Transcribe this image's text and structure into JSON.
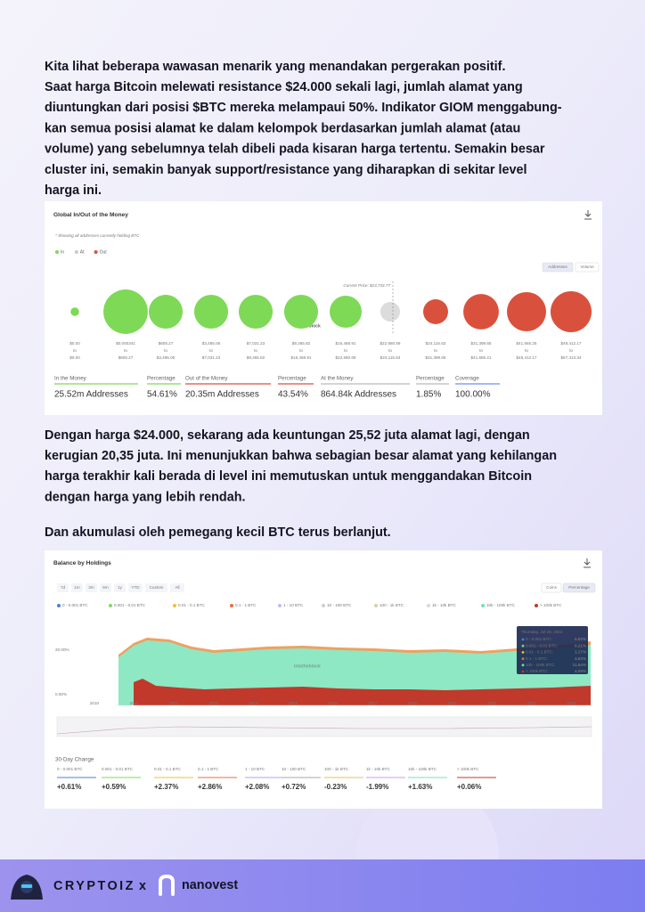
{
  "body": {
    "paragraphs": [
      {
        "lines": [
          "Kita lihat beberapa wawasan menarik yang menandakan pergerakan positif.",
          "Saat harga Bitcoin melewati resistance $24.000 sekali lagi, jumlah alamat yang",
          "diuntungkan dari posisi $BTC mereka melampaui 50%. Indikator GIOM menggabung-",
          "kan semua posisi alamat ke dalam kelompok berdasarkan jumlah alamat (atau",
          "volume) yang sebelumnya telah dibeli pada kisaran harga tertentu. Semakin besar",
          "cluster ini, semakin banyak support/resistance yang diharapkan di sekitar level",
          "harga ini."
        ]
      },
      {
        "lines": [
          "Dengan harga $24.000, sekarang ada keuntungan 25,52 juta alamat lagi, dengan",
          "kerugian 20,35 juta. Ini menunjukkan bahwa sebagian besar alamat yang kehilangan",
          "harga terakhir kali berada di level ini memutuskan untuk menggandakan Bitcoin",
          "dengan harga yang lebih rendah."
        ]
      },
      {
        "lines": [
          "Dan akumulasi oleh pemegang kecil BTC terus berlanjut."
        ]
      }
    ]
  },
  "figure_1": {
    "title": "Global In/Out of the Money",
    "note": "* Showing all addresses currently holding BTC",
    "legend": [
      {
        "label": "In",
        "color": "#7ed957"
      },
      {
        "label": "At",
        "color": "#c9c9c9"
      },
      {
        "label": "Out",
        "color": "#d9513c"
      }
    ],
    "toggles": [
      "Addresses",
      "Volume"
    ],
    "current_price": "Current Price: $23,733.77",
    "watermark": "intotheblock",
    "range_word": "to",
    "bubbles": [
      {
        "from": "$0.00",
        "to": "$0.00",
        "color": "#7ed957",
        "size": 4
      },
      {
        "from": "$0.000341",
        "to": "$605.27",
        "color": "#7ed957",
        "size": 108
      },
      {
        "from": "$605.27",
        "to": "$3,485.06",
        "color": "#7ed957",
        "size": 63
      },
      {
        "from": "$3,485.06",
        "to": "$7,031.23",
        "color": "#7ed957",
        "size": 63
      },
      {
        "from": "$7,031.23",
        "to": "$9,365.82",
        "color": "#7ed957",
        "size": 63
      },
      {
        "from": "$9,365.82",
        "to": "$16,468.91",
        "color": "#7ed957",
        "size": 63
      },
      {
        "from": "$16,468.91",
        "to": "$22,680.69",
        "color": "#7ed957",
        "size": 56
      },
      {
        "from": "$22,680.69",
        "to": "$24,115.63",
        "color": "#dcdcdc",
        "size": 21
      },
      {
        "from": "$24,115.63",
        "to": "$31,399.65",
        "color": "#d9513c",
        "size": 34
      },
      {
        "from": "$31,399.65",
        "to": "$41,665.21",
        "color": "#d9513c",
        "size": 69
      },
      {
        "from": "$41,665.25",
        "to": "$49,412.17",
        "color": "#d9513c",
        "size": 84
      },
      {
        "from": "$49,412.17",
        "to": "$67,413.34",
        "color": "#d9513c",
        "size": 92
      }
    ],
    "stats": [
      {
        "label": "In the Money",
        "value": "25.52m Addresses",
        "color": "#7ed957"
      },
      {
        "label": "Percentage",
        "value": "54.61%",
        "color": "#7ed957"
      },
      {
        "label": "Out of the Money",
        "value": "20.35m Addresses",
        "color": "#d9513c"
      },
      {
        "label": "Percentage",
        "value": "43.54%",
        "color": "#d9513c"
      },
      {
        "label": "At the Money",
        "value": "864.84k Addresses",
        "color": "#bbbbbb"
      },
      {
        "label": "Percentage",
        "value": "1.85%",
        "color": "#bbbbbb"
      },
      {
        "label": "Coverage",
        "value": "100.00%",
        "color": "#6f8ff0"
      }
    ]
  },
  "figure_2": {
    "title": "Balance by Holdings",
    "ranges": [
      "7d",
      "1m",
      "3m",
      "6m",
      "1y",
      "YTD",
      "Custom",
      "All"
    ],
    "toggles": [
      "Coins",
      "Percentage"
    ],
    "legend": [
      {
        "label": "0 - 0.001 BTC",
        "color": "#4a7fe0"
      },
      {
        "label": "0.001 - 0.01 BTC",
        "color": "#7ed957"
      },
      {
        "label": "0.01 - 0.1 BTC",
        "color": "#f2c12e"
      },
      {
        "label": "0.1 - 1 BTC",
        "color": "#ef6b3a"
      },
      {
        "label": "1 - 10 BTC",
        "color": "#c7b8f0"
      },
      {
        "label": "10 - 100 BTC",
        "color": "#cfcfcf"
      },
      {
        "label": "100 - 1k BTC",
        "color": "#d8d0a8"
      },
      {
        "label": "1k - 10k BTC",
        "color": "#d6d6e6"
      },
      {
        "label": "10k - 100k BTC",
        "color": "#6fe3b8"
      },
      {
        "label": "> 100k BTC",
        "color": "#c0392b"
      }
    ],
    "y_labels": [
      "20.00%",
      "0.00%"
    ],
    "years": [
      "2010",
      "2011",
      "2012",
      "2013",
      "2014",
      "2015",
      "2016",
      "2017",
      "2018",
      "2019",
      "2020",
      "2021",
      "2022"
    ],
    "watermark": "intotheblock",
    "tooltip": {
      "date": "Thursday, Jul 28, 2022",
      "rows": [
        {
          "label": "0 - 0.001 BTC:",
          "value": "0.02%",
          "color": "#4a7fe0"
        },
        {
          "label": "0.001 - 0.01 BTC:",
          "value": "0.21%",
          "color": "#7ed957"
        },
        {
          "label": "0.01 - 0.1 BTC:",
          "value": "1.17%",
          "color": "#f2c12e"
        },
        {
          "label": "0.1 - 1 BTC:",
          "value": "4.62%",
          "color": "#ef6b3a"
        },
        {
          "label": "10k - 100k BTC:",
          "value": "11.54%",
          "color": "#6fe3b8"
        },
        {
          "label": "> 100k BTC:",
          "value": "4.06%",
          "color": "#c0392b"
        }
      ]
    },
    "change_title": "30-Day Change",
    "changes": [
      {
        "label": "0 - 0.001 BTC",
        "value": "+0.61%",
        "color": "#4a7fe0"
      },
      {
        "label": "0.001 - 0.01 BTC",
        "value": "+0.59%",
        "color": "#7ed957"
      },
      {
        "label": "0.01 - 0.1 BTC",
        "value": "+2.37%",
        "color": "#f2c12e"
      },
      {
        "label": "0.1 - 1 BTC",
        "value": "+2.86%",
        "color": "#ef6b3a"
      },
      {
        "label": "1 - 10 BTC",
        "value": "+2.08%",
        "color": "#b79ef0"
      },
      {
        "label": "10 - 100 BTC",
        "value": "+0.72%",
        "color": "#aaaaaa"
      },
      {
        "label": "100 - 1k BTC",
        "value": "-0.23%",
        "color": "#e0c060"
      },
      {
        "label": "1k - 10k BTC",
        "value": "-1.99%",
        "color": "#c9a0e0"
      },
      {
        "label": "10k - 100k BTC",
        "value": "+1.63%",
        "color": "#6fe3b8"
      },
      {
        "label": "> 100k BTC",
        "value": "+0.06%",
        "color": "#c0392b"
      }
    ]
  },
  "footer": {
    "brand": "CRYPTOIZ",
    "separator": "x",
    "partner": "nanovest"
  }
}
